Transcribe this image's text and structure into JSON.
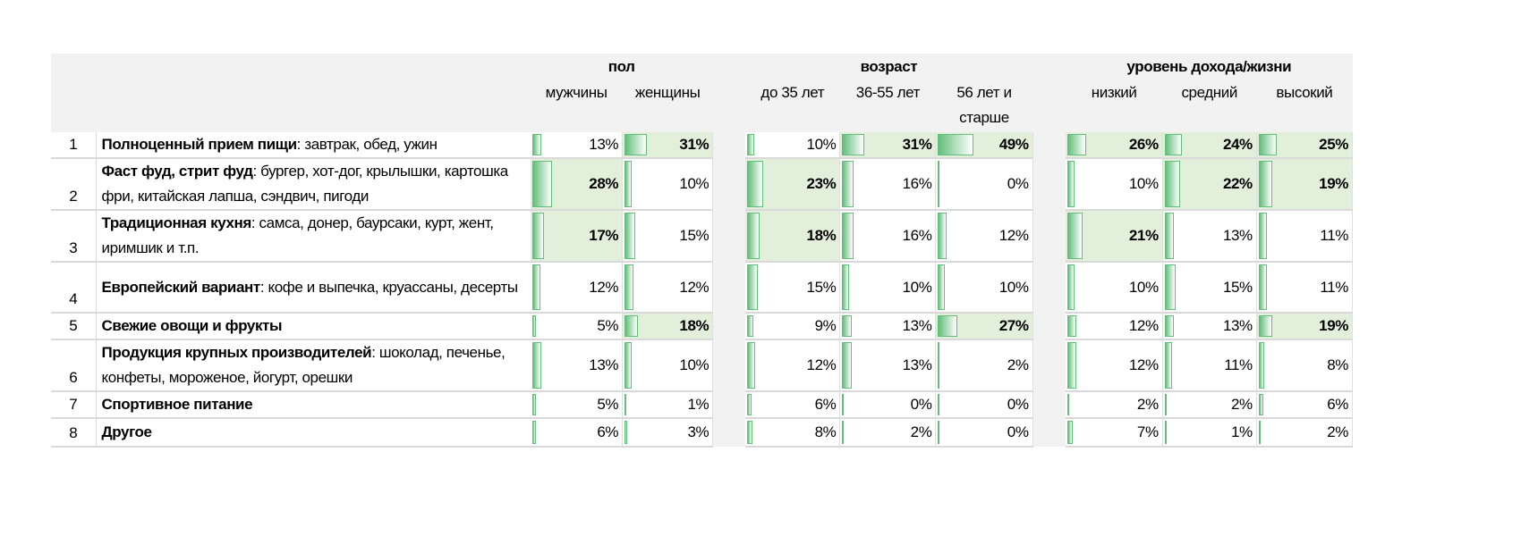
{
  "header": {
    "groups": {
      "gender": "пол",
      "age": "возраст",
      "income": "уровень дохода/жизни"
    },
    "columns": [
      "мужчины",
      "женщины",
      "до 35 лет",
      "36-55 лет",
      "56 лет и старше",
      "низкий",
      "средний",
      "высокий"
    ]
  },
  "colors": {
    "bar": "#63be7b",
    "highlight": "#e2efda",
    "header_bg": "#f2f2f2"
  },
  "rows": [
    {
      "num": "1",
      "bold": "Полноценный прием пищи",
      "rest": ": завтрак, обед, ужин",
      "values": [
        13,
        31,
        10,
        31,
        49,
        26,
        24,
        25
      ],
      "highlight": [
        false,
        true,
        false,
        true,
        true,
        true,
        true,
        true
      ]
    },
    {
      "num": "2",
      "bold": "Фаст фуд, стрит фуд",
      "rest": ": бургер, хот-дог, крылышки, картошка фри, китайская лапша, сэндвич, пигоди",
      "values": [
        28,
        10,
        23,
        16,
        0,
        10,
        22,
        19
      ],
      "highlight": [
        true,
        false,
        true,
        false,
        false,
        false,
        true,
        true
      ]
    },
    {
      "num": "3",
      "bold": "Традиционная кухня",
      "rest": ": самса, донер, баурсаки, курт, жент, иримшик и т.п.",
      "values": [
        17,
        15,
        18,
        16,
        12,
        21,
        13,
        11
      ],
      "highlight": [
        true,
        false,
        true,
        false,
        false,
        true,
        false,
        false
      ]
    },
    {
      "num": "4",
      "bold": "Европейский вариант",
      "rest": ": кофе и выпечка, круассаны, десерты",
      "values": [
        12,
        12,
        15,
        10,
        10,
        10,
        15,
        11
      ],
      "highlight": [
        false,
        false,
        false,
        false,
        false,
        false,
        false,
        false
      ]
    },
    {
      "num": "5",
      "bold": "Свежие овощи и фрукты",
      "rest": "",
      "values": [
        5,
        18,
        9,
        13,
        27,
        12,
        13,
        19
      ],
      "highlight": [
        false,
        true,
        false,
        false,
        true,
        false,
        false,
        true
      ]
    },
    {
      "num": "6",
      "bold": "Продукция крупных производителей",
      "rest": ": шоколад, печенье, конфеты, мороженое, йогурт, орешки",
      "values": [
        13,
        10,
        12,
        13,
        2,
        12,
        11,
        8
      ],
      "highlight": [
        false,
        false,
        false,
        false,
        false,
        false,
        false,
        false
      ]
    },
    {
      "num": "7",
      "bold": "Спортивное питание",
      "rest": "",
      "values": [
        5,
        1,
        6,
        0,
        0,
        2,
        2,
        6
      ],
      "highlight": [
        false,
        false,
        false,
        false,
        false,
        false,
        false,
        false
      ]
    },
    {
      "num": "8",
      "bold": "Другое",
      "rest": "",
      "values": [
        6,
        3,
        8,
        2,
        0,
        7,
        1,
        2
      ],
      "highlight": [
        false,
        false,
        false,
        false,
        false,
        false,
        false,
        false
      ]
    }
  ]
}
